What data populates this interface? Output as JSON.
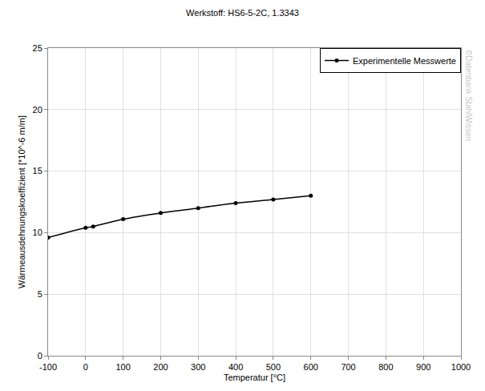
{
  "chart_data": {
    "type": "line",
    "title": "Werkstoff: HS6-5-2C, 1.3343",
    "x_label": "Temperatur [°C]",
    "y_label": "Wärmeausdehnungskoeffizient [*10^-6 m/m]",
    "x": [
      -100,
      0,
      20,
      100,
      200,
      300,
      400,
      500,
      600
    ],
    "series": [
      {
        "name": "Experimentelle Messwerte",
        "color": "#000000",
        "marker": "circle",
        "line_style": "solid",
        "values": [
          9.6,
          10.4,
          10.5,
          11.1,
          11.6,
          12.0,
          12.4,
          12.7,
          13.0
        ]
      }
    ],
    "xlim": [
      -100,
      1000
    ],
    "xticks": [
      -100,
      0,
      100,
      200,
      300,
      400,
      500,
      600,
      700,
      800,
      900,
      1000
    ],
    "ylim": [
      0,
      25
    ],
    "yticks": [
      0,
      5,
      10,
      15,
      20,
      25
    ],
    "grid": true,
    "legend": "upper right",
    "annotations": [
      "©Datenbank StahlWissen"
    ]
  }
}
